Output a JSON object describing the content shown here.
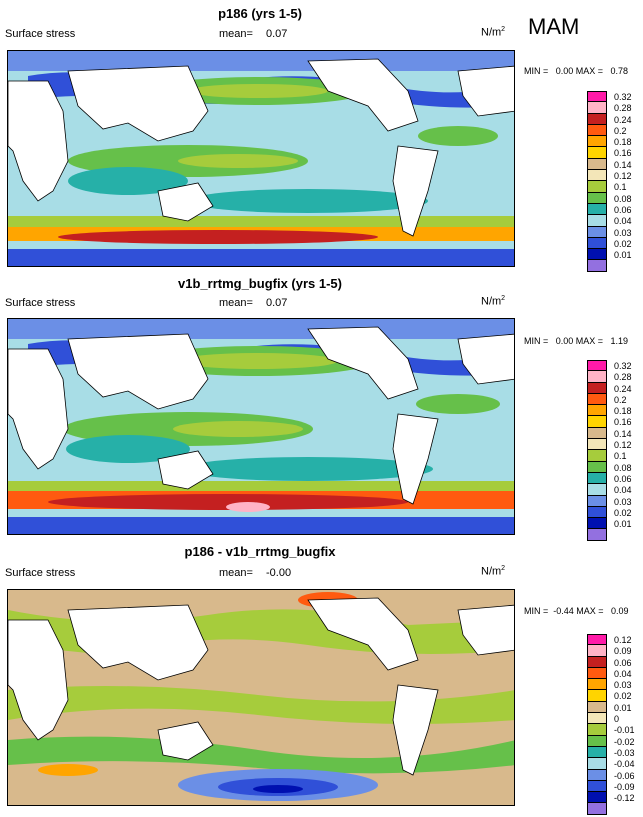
{
  "season": "MAM",
  "units_base": "N/m",
  "units_exp": "2",
  "mean_label": "mean=",
  "panels": [
    {
      "title": "p186 (yrs 1-5)",
      "variable": "Surface stress",
      "mean": "0.07",
      "min_max": "MIN =   0.00 MAX =   0.78",
      "colorbar": {
        "labels": [
          "0.32",
          "0.28",
          "0.24",
          "0.2",
          "0.18",
          "0.16",
          "0.14",
          "0.12",
          "0.1",
          "0.08",
          "0.06",
          "0.04",
          "0.03",
          "0.02",
          "0.01"
        ],
        "colors": [
          "#ff1aa8",
          "#ffb3c6",
          "#c42020",
          "#ff5a10",
          "#ffa500",
          "#ffd400",
          "#d8b98c",
          "#f3e6b8",
          "#a6cc3c",
          "#66c04a",
          "#26b0a8",
          "#a8dde6",
          "#6b8fe6",
          "#3050d8",
          "#0010b0",
          "#9370e0"
        ]
      },
      "chart_data": {
        "type": "heatmap",
        "title": "p186 (yrs 1-5)",
        "variable": "Surface stress",
        "units": "N/m2",
        "mean": 0.07,
        "min": 0.0,
        "max": 0.78,
        "levels": [
          0.01,
          0.02,
          0.03,
          0.04,
          0.06,
          0.08,
          0.1,
          0.12,
          0.14,
          0.16,
          0.18,
          0.2,
          0.24,
          0.28,
          0.32
        ]
      }
    },
    {
      "title": "v1b_rrtmg_bugfix (yrs 1-5)",
      "variable": "Surface stress",
      "mean": "0.07",
      "min_max": "MIN =   0.00 MAX =   1.19",
      "colorbar": {
        "labels": [
          "0.32",
          "0.28",
          "0.24",
          "0.2",
          "0.18",
          "0.16",
          "0.14",
          "0.12",
          "0.1",
          "0.08",
          "0.06",
          "0.04",
          "0.03",
          "0.02",
          "0.01"
        ],
        "colors": [
          "#ff1aa8",
          "#ffb3c6",
          "#c42020",
          "#ff5a10",
          "#ffa500",
          "#ffd400",
          "#d8b98c",
          "#f3e6b8",
          "#a6cc3c",
          "#66c04a",
          "#26b0a8",
          "#a8dde6",
          "#6b8fe6",
          "#3050d8",
          "#0010b0",
          "#9370e0"
        ]
      },
      "chart_data": {
        "type": "heatmap",
        "title": "v1b_rrtmg_bugfix (yrs 1-5)",
        "variable": "Surface stress",
        "units": "N/m2",
        "mean": 0.07,
        "min": 0.0,
        "max": 1.19,
        "levels": [
          0.01,
          0.02,
          0.03,
          0.04,
          0.06,
          0.08,
          0.1,
          0.12,
          0.14,
          0.16,
          0.18,
          0.2,
          0.24,
          0.28,
          0.32
        ]
      }
    },
    {
      "title": "p186 - v1b_rrtmg_bugfix",
      "variable": "Surface stress",
      "mean": "-0.00",
      "min_max": "MIN =  -0.44 MAX =   0.09",
      "colorbar": {
        "labels": [
          "0.12",
          "0.09",
          "0.06",
          "0.04",
          "0.03",
          "0.02",
          "0.01",
          "0",
          "-0.01",
          "-0.02",
          "-0.03",
          "-0.04",
          "-0.06",
          "-0.09",
          "-0.12"
        ],
        "colors": [
          "#ff1aa8",
          "#ffb3c6",
          "#c42020",
          "#ff5a10",
          "#ffa500",
          "#ffd400",
          "#d8b98c",
          "#f3e6b8",
          "#a6cc3c",
          "#66c04a",
          "#26b0a8",
          "#a8dde6",
          "#6b8fe6",
          "#3050d8",
          "#0010b0",
          "#9370e0"
        ]
      },
      "chart_data": {
        "type": "heatmap",
        "title": "p186 - v1b_rrtmg_bugfix",
        "variable": "Surface stress",
        "units": "N/m2",
        "mean": -0.0,
        "min": -0.44,
        "max": 0.09,
        "levels": [
          -0.12,
          -0.09,
          -0.06,
          -0.04,
          -0.03,
          -0.02,
          -0.01,
          0,
          0.01,
          0.02,
          0.03,
          0.04,
          0.06,
          0.09,
          0.12
        ]
      }
    }
  ]
}
